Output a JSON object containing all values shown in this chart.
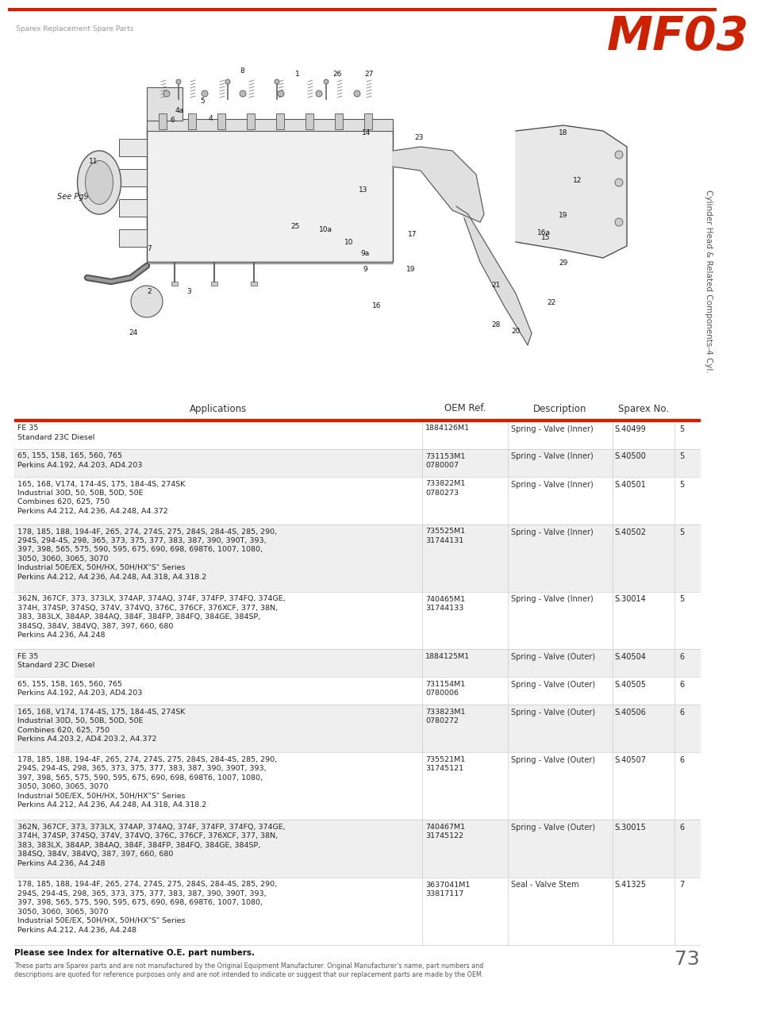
{
  "header_text": "Sparex Replacement Spare Parts",
  "logo_text": "MF03",
  "side_text": "Cylinder Head & Related Components-4 Cyl.",
  "page_number": "73",
  "red_color": "#cc2200",
  "light_gray": "#efefef",
  "rows": [
    {
      "app": "FE 35\nStandard 23C Diesel",
      "oem": "1884126M1",
      "desc": "Spring - Valve (Inner)",
      "sparex": "S.40499",
      "num": "5",
      "shade": false
    },
    {
      "app": "65, 155, 158, 165, 560, 765\nPerkins A4.192, A4.203, AD4.203",
      "oem": "731153M1\n0780007",
      "desc": "Spring - Valve (Inner)",
      "sparex": "S.40500",
      "num": "5",
      "shade": true
    },
    {
      "app": "165, 168, V174, 174-4S, 175, 184-4S, 274SK\nIndustrial 30D, 50, 50B, 50D, 50E\nCombines 620, 625, 750\nPerkins A4.212, A4.236, A4.248, A4.372",
      "oem": "733822M1\n0780273",
      "desc": "Spring - Valve (Inner)",
      "sparex": "S.40501",
      "num": "5",
      "shade": false
    },
    {
      "app": "178, 185, 188, 194-4F, 265, 274, 274S, 275, 284S, 284-4S, 285, 290,\n294S, 294-4S, 298, 365, 373, 375, 377, 383, 387, 390, 390T, 393,\n397, 398, 565, 575, 590, 595, 675, 690, 698, 698T6, 1007, 1080,\n3050, 3060, 3065, 3070\nIndustrial 50E/EX, 50H/HX, 50H/HX\"S\" Series\nPerkins A4.212, A4.236, A4.248, A4.318, A4.318.2",
      "oem": "735525M1\n31744131",
      "desc": "Spring - Valve (Inner)",
      "sparex": "S.40502",
      "num": "5",
      "shade": true
    },
    {
      "app": "362N, 367CF, 373, 373LX, 374AP, 374AQ, 374F, 374FP, 374FQ, 374GE,\n374H, 374SP, 374SQ, 374V, 374VQ, 376C, 376CF, 376XCF, 377, 38N,\n383, 383LX, 384AP, 384AQ, 384F, 384FP, 384FQ, 384GE, 384SP,\n384SQ, 384V, 384VQ, 387, 397, 660, 680\nPerkins A4.236, A4.248",
      "oem": "740465M1\n31744133",
      "desc": "Spring - Valve (Inner)",
      "sparex": "S.30014",
      "num": "5",
      "shade": false
    },
    {
      "app": "FE 35\nStandard 23C Diesel",
      "oem": "1884125M1",
      "desc": "Spring - Valve (Outer)",
      "sparex": "S.40504",
      "num": "6",
      "shade": true
    },
    {
      "app": "65, 155, 158, 165, 560, 765\nPerkins A4.192, A4.203, AD4.203",
      "oem": "731154M1\n0780006",
      "desc": "Spring - Valve (Outer)",
      "sparex": "S.40505",
      "num": "6",
      "shade": false
    },
    {
      "app": "165, 168, V174, 174-4S, 175, 184-4S, 274SK\nIndustrial 30D, 50, 50B, 50D, 50E\nCombines 620, 625, 750\nPerkins A4.203.2, AD4.203.2, A4.372",
      "oem": "733823M1\n0780272",
      "desc": "Spring - Valve (Outer)",
      "sparex": "S.40506",
      "num": "6",
      "shade": true
    },
    {
      "app": "178, 185, 188, 194-4F, 265, 274, 274S, 275, 284S, 284-4S, 285, 290,\n294S, 294-4S, 298, 365, 373, 375, 377, 383, 387, 390, 390T, 393,\n397, 398, 565, 575, 590, 595, 675, 690, 698, 698T6, 1007, 1080,\n3050, 3060, 3065, 3070\nIndustrial 50E/EX, 50H/HX, 50H/HX\"S\" Series\nPerkins A4.212, A4.236, A4.248, A4.318, A4.318.2",
      "oem": "735521M1\n31745121",
      "desc": "Spring - Valve (Outer)",
      "sparex": "S.40507",
      "num": "6",
      "shade": false
    },
    {
      "app": "362N, 367CF, 373, 373LX, 374AP, 374AQ, 374F, 374FP, 374FQ, 374GE,\n374H, 374SP, 374SQ, 374V, 374VQ, 376C, 376CF, 376XCF, 377, 38N,\n383, 383LX, 384AP, 384AQ, 384F, 384FP, 384FQ, 384GE, 384SP,\n384SQ, 384V, 384VQ, 387, 397, 660, 680\nPerkins A4.236, A4.248",
      "oem": "740467M1\n31745122",
      "desc": "Spring - Valve (Outer)",
      "sparex": "S.30015",
      "num": "6",
      "shade": true
    },
    {
      "app": "178, 185, 188, 194-4F, 265, 274, 274S, 275, 284S, 284-4S, 285, 290,\n294S, 294-4S, 298, 365, 373, 375, 377, 383, 387, 390, 390T, 393,\n397, 398, 565, 575, 590, 595, 675, 690, 698, 698T6, 1007, 1080,\n3050, 3060, 3065, 3070\nIndustrial 50E/EX, 50H/HX, 50H/HX\"S\" Series\nPerkins A4.212, A4.236, A4.248",
      "oem": "3637041M1\n33817117",
      "desc": "Seal - Valve Stem",
      "sparex": "S.41325",
      "num": "7",
      "shade": false
    }
  ],
  "footer_note": "Please see Index for alternative O.E. part numbers.",
  "footer_disclaimer": "These parts are Sparex parts and are not manufactured by the Original Equipment Manufacturer. Original Manufacturer's name, part numbers and\ndescriptions are quoted for reference purposes only and are not intended to indicate or suggest that our replacement parts are made by the OEM."
}
